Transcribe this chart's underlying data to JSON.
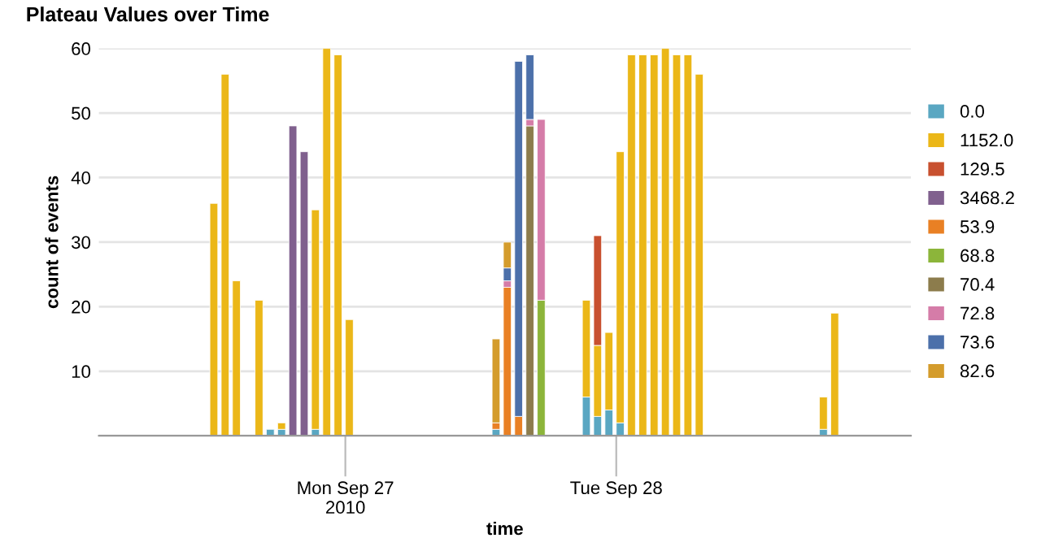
{
  "chart_data": {
    "type": "bar",
    "stacked": true,
    "title": "Plateau Values over Time",
    "xlabel": "time",
    "ylabel": "count of events",
    "x": [
      "2010-09-26T12:00",
      "2010-09-26T13:00",
      "2010-09-26T14:00",
      "2010-09-26T16:00",
      "2010-09-26T17:00",
      "2010-09-26T18:00",
      "2010-09-26T19:00",
      "2010-09-26T20:00",
      "2010-09-26T21:00",
      "2010-09-26T22:00",
      "2010-09-26T23:00",
      "2010-09-27T00:00",
      "2010-09-27T13:00",
      "2010-09-27T14:00",
      "2010-09-27T15:00",
      "2010-09-27T16:00",
      "2010-09-27T17:00",
      "2010-09-27T21:00",
      "2010-09-27T22:00",
      "2010-09-27T23:00",
      "2010-09-28T00:00",
      "2010-09-28T01:00",
      "2010-09-28T02:00",
      "2010-09-28T03:00",
      "2010-09-28T04:00",
      "2010-09-28T05:00",
      "2010-09-28T06:00",
      "2010-09-28T07:00",
      "2010-09-28T18:00",
      "2010-09-28T19:00"
    ],
    "series": [
      {
        "name": "0.0",
        "color": "#5aa7c2",
        "values": [
          null,
          null,
          null,
          null,
          1,
          1,
          null,
          null,
          1,
          null,
          null,
          null,
          1,
          null,
          null,
          null,
          null,
          6,
          3,
          4,
          2,
          null,
          null,
          null,
          null,
          null,
          null,
          null,
          1,
          null
        ]
      },
      {
        "name": "1152.0",
        "color": "#ebb718",
        "values": [
          36,
          56,
          24,
          21,
          null,
          1,
          null,
          null,
          34,
          60,
          59,
          18,
          null,
          null,
          null,
          null,
          null,
          15,
          11,
          12,
          42,
          59,
          59,
          59,
          60,
          59,
          59,
          56,
          5,
          19
        ]
      },
      {
        "name": "129.5",
        "color": "#c8502f",
        "values": [
          null,
          null,
          null,
          null,
          null,
          null,
          null,
          null,
          null,
          null,
          null,
          null,
          null,
          null,
          null,
          null,
          null,
          null,
          17,
          null,
          null,
          null,
          null,
          null,
          null,
          null,
          null,
          null,
          null,
          null
        ]
      },
      {
        "name": "3468.2",
        "color": "#80608e",
        "values": [
          null,
          null,
          null,
          null,
          null,
          null,
          48,
          44,
          null,
          null,
          null,
          null,
          null,
          null,
          null,
          null,
          null,
          null,
          null,
          null,
          null,
          null,
          null,
          null,
          null,
          null,
          null,
          null,
          null,
          null
        ]
      },
      {
        "name": "53.9",
        "color": "#e98024",
        "values": [
          null,
          null,
          null,
          null,
          null,
          null,
          null,
          null,
          null,
          null,
          null,
          null,
          1,
          23,
          3,
          null,
          null,
          null,
          null,
          null,
          null,
          null,
          null,
          null,
          null,
          null,
          null,
          null,
          null,
          null
        ]
      },
      {
        "name": "68.8",
        "color": "#8cb53a",
        "values": [
          null,
          null,
          null,
          null,
          null,
          null,
          null,
          null,
          null,
          null,
          null,
          null,
          null,
          null,
          null,
          null,
          21,
          null,
          null,
          null,
          null,
          null,
          null,
          null,
          null,
          null,
          null,
          null,
          null,
          null
        ]
      },
      {
        "name": "70.4",
        "color": "#8c7c4c",
        "values": [
          null,
          null,
          null,
          null,
          null,
          null,
          null,
          null,
          null,
          null,
          null,
          null,
          null,
          null,
          null,
          48,
          null,
          null,
          null,
          null,
          null,
          null,
          null,
          null,
          null,
          null,
          null,
          null,
          null,
          null
        ]
      },
      {
        "name": "72.8",
        "color": "#d57ca8",
        "values": [
          null,
          null,
          null,
          null,
          null,
          null,
          null,
          null,
          null,
          null,
          null,
          null,
          null,
          1,
          null,
          1,
          28,
          null,
          null,
          null,
          null,
          null,
          null,
          null,
          null,
          null,
          null,
          null,
          null,
          null
        ]
      },
      {
        "name": "73.6",
        "color": "#4c70aa",
        "values": [
          null,
          null,
          null,
          null,
          null,
          null,
          null,
          null,
          null,
          null,
          null,
          null,
          null,
          2,
          55,
          10,
          null,
          null,
          null,
          null,
          null,
          null,
          null,
          null,
          null,
          null,
          null,
          null,
          null,
          null
        ]
      },
      {
        "name": "82.6",
        "color": "#d49c2c",
        "values": [
          null,
          null,
          null,
          null,
          null,
          null,
          null,
          null,
          null,
          null,
          null,
          null,
          13,
          4,
          null,
          null,
          null,
          null,
          null,
          null,
          null,
          null,
          null,
          null,
          null,
          null,
          null,
          null,
          null,
          null
        ]
      }
    ],
    "xlim": [
      "2010-09-26T02:10",
      "2010-09-29T02:06"
    ],
    "xticks": [
      {
        "value": "2010-09-27",
        "label": "Mon Sep 27\n2010"
      },
      {
        "value": "2010-09-28",
        "label": "Tue Sep 28"
      }
    ],
    "ylim": [
      0,
      60
    ],
    "yticks": [
      {
        "value": 0,
        "label": null
      },
      10,
      20,
      30,
      40,
      50,
      60
    ],
    "grid": "y",
    "legend": "right"
  }
}
